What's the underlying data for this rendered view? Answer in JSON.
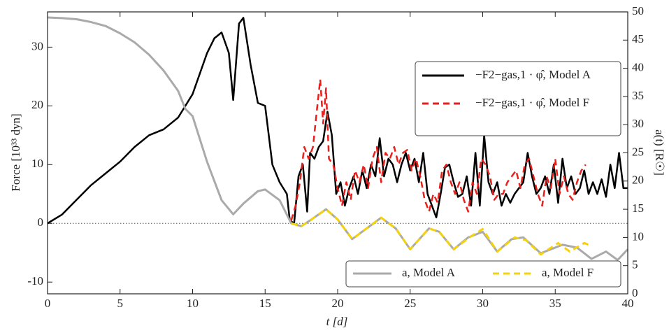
{
  "chart_data": {
    "type": "line",
    "x_label": "t  [d]",
    "y_label": "Force [10³³  dyn]",
    "y2_label": "a(t) [R☉]",
    "xlim": [
      0,
      40
    ],
    "xticks": [
      0,
      5,
      10,
      15,
      20,
      25,
      30,
      35,
      40
    ],
    "ylim": [
      -12,
      36
    ],
    "yticks": [
      -10,
      0,
      10,
      20,
      30
    ],
    "y2lim": [
      0,
      50
    ],
    "y2ticks": [
      0,
      5,
      10,
      15,
      20,
      25,
      30,
      35,
      40,
      45,
      50
    ],
    "hline": 0,
    "series": [
      {
        "name": "−F2−gas,1 · φ̂, Model A",
        "color": "#000000",
        "dash": false,
        "x": [
          0,
          1,
          2,
          3,
          4,
          5,
          6,
          7,
          8,
          9,
          10,
          11,
          11.5,
          12,
          12.5,
          12.8,
          13.2,
          13.5,
          14,
          14.5,
          15,
          15.5,
          16,
          16.5,
          16.7,
          17,
          17.3,
          17.6,
          17.9,
          18.1,
          18.4,
          18.7,
          19,
          19.3,
          19.6,
          19.9,
          20.2,
          20.5,
          20.8,
          21.1,
          21.4,
          21.7,
          22,
          22.3,
          22.6,
          22.9,
          23.2,
          23.5,
          23.8,
          24.1,
          24.4,
          24.7,
          25,
          25.3,
          25.6,
          25.9,
          26.2,
          26.5,
          26.8,
          27.1,
          27.4,
          27.7,
          28,
          28.3,
          28.6,
          28.9,
          29.2,
          29.5,
          29.8,
          30.1,
          30.4,
          30.7,
          31,
          31.3,
          31.6,
          31.9,
          32.2,
          32.5,
          32.8,
          33.1,
          33.4,
          33.7,
          34,
          34.3,
          34.6,
          34.9,
          35.2,
          35.5,
          35.8,
          36.1,
          36.4,
          36.7,
          37,
          37.3,
          37.6,
          37.9,
          38.2,
          38.5,
          38.8,
          39.1,
          39.4,
          39.7,
          40
        ],
        "values": [
          0,
          1.5,
          4,
          6.5,
          8.5,
          10.5,
          13,
          15,
          16,
          18,
          22,
          29,
          31.5,
          32.5,
          29,
          21,
          34,
          35,
          27,
          20.5,
          20,
          10,
          7,
          5,
          0.5,
          0,
          8,
          10,
          2,
          12,
          11,
          13,
          14,
          19,
          15,
          5,
          7,
          3,
          6,
          8,
          5,
          9,
          6,
          10,
          8,
          14.5,
          8,
          11,
          10,
          7,
          10,
          12,
          9,
          11,
          7,
          12,
          5,
          3,
          1,
          5,
          9.5,
          10,
          7,
          4.5,
          5,
          8,
          3,
          12,
          3,
          15,
          7,
          5,
          7,
          3,
          5,
          3.5,
          5,
          6,
          7,
          12,
          8,
          5,
          6,
          8,
          5,
          10,
          3.5,
          11,
          6,
          8,
          5,
          6,
          9,
          5,
          7,
          5,
          7.5,
          4.5,
          10,
          6,
          12,
          6,
          6
        ]
      },
      {
        "name": "−F2−gas,1 · φ̂, Model F",
        "color": "#e8201c",
        "dash": true,
        "x": [
          16.8,
          17.1,
          17.4,
          17.7,
          18,
          18.3,
          18.6,
          18.8,
          19,
          19.2,
          19.4,
          19.7,
          20,
          20.3,
          20.6,
          20.9,
          21.2,
          21.5,
          21.8,
          22.1,
          22.4,
          22.7,
          23,
          23.3,
          23.6,
          23.9,
          24.2,
          24.5,
          24.8,
          25.1,
          25.4,
          25.7,
          26,
          26.3,
          26.6,
          26.9,
          27.2,
          27.5,
          27.8,
          28.1,
          28.4,
          28.7,
          29,
          29.3,
          29.6,
          29.9,
          30.2,
          30.5,
          30.8,
          31.1,
          31.4,
          31.7,
          32,
          32.3,
          32.6,
          32.9,
          33.2,
          33.5,
          33.8,
          34.1,
          34.4,
          34.7,
          35,
          35.3,
          35.6,
          35.9,
          36.2,
          36.5,
          36.8,
          37.1
        ],
        "values": [
          0.5,
          3,
          7,
          13,
          11,
          13,
          20,
          24.5,
          17,
          23,
          11,
          10,
          6,
          3,
          7,
          4,
          9,
          7,
          10,
          6,
          11,
          13,
          7,
          12,
          11,
          13,
          10,
          12,
          12.5,
          9,
          11,
          8,
          4,
          2,
          5,
          3.5,
          9,
          10,
          7,
          5,
          7,
          4,
          2,
          7,
          5,
          11,
          10,
          8,
          4,
          5,
          5,
          7,
          8,
          9,
          6,
          10,
          11,
          8,
          5,
          3,
          8,
          6,
          11,
          5,
          8,
          5,
          4,
          7,
          9,
          10
        ]
      },
      {
        "name": "a, Model A",
        "color": "#aaaaaa",
        "dash": false,
        "axis": "y2",
        "x": [
          0,
          1,
          2,
          3,
          4,
          5,
          6,
          7,
          8,
          9,
          9.5,
          10,
          11,
          12,
          12.8,
          13.5,
          14.5,
          15,
          16,
          16.8,
          17.5,
          18.2,
          19.2,
          20,
          21,
          22,
          23,
          24,
          25,
          26.3,
          27,
          28,
          29,
          30,
          31,
          32,
          32.8,
          34,
          35.5,
          36.5,
          37.5,
          38.5,
          39.3,
          40
        ],
        "values": [
          49,
          48.9,
          48.7,
          48.2,
          47.5,
          46.2,
          44.6,
          42.4,
          39.6,
          36,
          32.8,
          31.5,
          23.4,
          16.6,
          14.1,
          16,
          18.2,
          18.5,
          16.6,
          12.5,
          12,
          13.2,
          15,
          13.2,
          9.7,
          11.6,
          13.5,
          11.6,
          7.9,
          11.6,
          11,
          7.9,
          10,
          11,
          7.5,
          9.7,
          10,
          7.2,
          8.7,
          8.2,
          6.2,
          7.5,
          6,
          7.9
        ]
      },
      {
        "name": "a, Model F",
        "color": "#f5d20a",
        "dash": true,
        "axis": "y2",
        "x": [
          16.8,
          17.5,
          18.2,
          19.2,
          20,
          21,
          22,
          23,
          24,
          25,
          26.3,
          27,
          28,
          29.2,
          30,
          31,
          32.2,
          33,
          34,
          35.2,
          36,
          37,
          37.5
        ],
        "values": [
          12.5,
          12,
          13.2,
          15,
          13.2,
          9.7,
          11.6,
          13.5,
          11.6,
          7.9,
          11.6,
          11,
          7.9,
          10.2,
          11.5,
          7.5,
          10,
          9.5,
          7,
          9,
          7.5,
          9,
          8.5
        ]
      }
    ]
  }
}
